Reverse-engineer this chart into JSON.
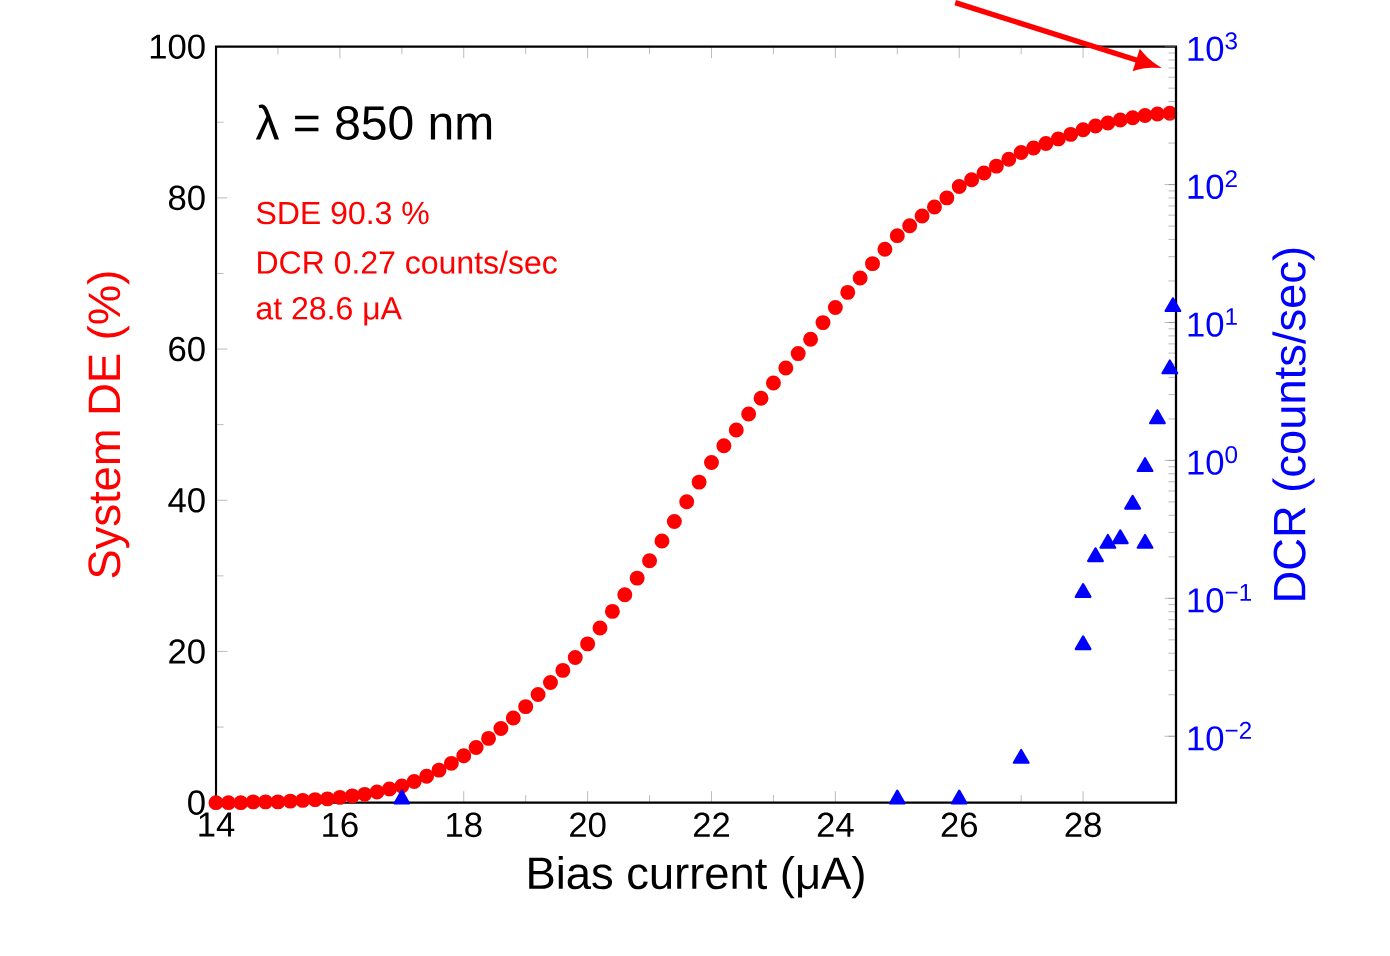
{
  "chart_data": {
    "type": "scatter",
    "xlabel": "Bias current (μA)",
    "ylabel": "System DE (%)",
    "y2label": "DCR (counts/sec)",
    "xlim": [
      14,
      29.5
    ],
    "xticks": [
      14,
      16,
      18,
      20,
      22,
      24,
      26,
      28
    ],
    "ylim": [
      0,
      100
    ],
    "yticks": [
      0,
      20,
      40,
      60,
      80,
      100
    ],
    "y2lim": [
      0.0033,
      1000
    ],
    "log": "y2",
    "y2ticks": [
      {
        "value": 0.01,
        "label": "10$^{−2}$"
      },
      {
        "value": 0.1,
        "label": "10$^{−1}$"
      },
      {
        "value": 1,
        "label": "10$^{0}$"
      },
      {
        "value": 10,
        "label": "10$^{1}$"
      },
      {
        "value": 100,
        "label": "10$^{2}$"
      },
      {
        "value": 1000,
        "label": "10$^{3}$"
      }
    ],
    "annotations": [
      "λ = 850 nm",
      "SDE 90.3 %",
      "DCR 0.27 counts/sec",
      "at 28.6 μA"
    ],
    "series": [
      {
        "marker": "circle",
        "color": "#ff0000",
        "x": [
          14.0,
          14.2,
          14.4,
          14.6,
          14.8,
          15.0,
          15.2,
          15.4,
          15.6,
          15.8,
          16.0,
          16.2,
          16.4,
          16.6,
          16.8,
          17.0,
          17.2,
          17.4,
          17.6,
          17.8,
          18.0,
          18.2,
          18.4,
          18.6,
          18.8,
          19.0,
          19.2,
          19.4,
          19.6,
          19.8,
          20.0,
          20.2,
          20.4,
          20.6,
          20.8,
          21.0,
          21.2,
          21.4,
          21.6,
          21.8,
          22.0,
          22.2,
          22.4,
          22.6,
          22.8,
          23.0,
          23.2,
          23.4,
          23.6,
          23.8,
          24.0,
          24.2,
          24.4,
          24.6,
          24.8,
          25.0,
          25.2,
          25.4,
          25.6,
          25.8,
          26.0,
          26.2,
          26.4,
          26.6,
          26.8,
          27.0,
          27.2,
          27.4,
          27.6,
          27.8,
          28.0,
          28.2,
          28.4,
          28.6,
          28.8,
          29.0,
          29.2,
          29.4
        ],
        "values": [
          0,
          0,
          0,
          0.1,
          0.1,
          0.1,
          0.2,
          0.3,
          0.4,
          0.5,
          0.7,
          0.9,
          1.1,
          1.4,
          1.8,
          2.2,
          2.8,
          3.5,
          4.3,
          5.2,
          6.2,
          7.3,
          8.5,
          9.8,
          11.2,
          12.7,
          14.3,
          15.9,
          17.5,
          19.2,
          21.0,
          23.1,
          25.3,
          27.5,
          29.7,
          32.0,
          34.6,
          37.2,
          39.8,
          42.4,
          45.0,
          47.2,
          49.3,
          51.4,
          53.5,
          55.5,
          57.5,
          59.4,
          61.3,
          63.5,
          65.5,
          67.5,
          69.4,
          71.3,
          73.2,
          75.0,
          76.3,
          77.6,
          78.8,
          80.0,
          81.5,
          82.4,
          83.3,
          84.2,
          85.1,
          86.0,
          86.6,
          87.2,
          87.8,
          88.4,
          89.0,
          89.5,
          89.9,
          90.3,
          90.6,
          90.9,
          91.1,
          91.2
        ]
      },
      {
        "axis": "y2",
        "marker": "triangle",
        "color": "#0000ff",
        "x": [
          17.0,
          25.0,
          26.0,
          27.0,
          28.0,
          28.0,
          28.2,
          28.4,
          28.6,
          28.8,
          29.0,
          29.0,
          29.2,
          29.4,
          29.45
        ],
        "values": [
          0.0035,
          0.0035,
          0.0035,
          0.0069,
          0.046,
          0.11,
          0.2,
          0.25,
          0.27,
          0.48,
          0.25,
          0.9,
          2.0,
          4.6,
          13
        ]
      }
    ]
  }
}
